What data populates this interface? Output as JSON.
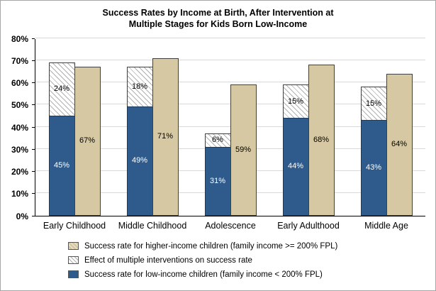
{
  "chart_data": {
    "type": "bar",
    "title": "Success Rates by Income at Birth, After Intervention at\nMultiple Stages for Kids Born Low-Income",
    "categories": [
      "Early Childhood",
      "Middle Childhood",
      "Adolescence",
      "Early Adulthood",
      "Middle Age"
    ],
    "series": [
      {
        "name": "Success rate for low-income children (family income < 200% FPL)",
        "values": [
          45,
          49,
          31,
          44,
          43
        ]
      },
      {
        "name": "Effect of multiple interventions on success rate",
        "values": [
          24,
          18,
          6,
          15,
          15
        ]
      },
      {
        "name": "Success rate for higher-income children (family income >= 200% FPL)",
        "values": [
          67,
          71,
          59,
          68,
          64
        ]
      }
    ],
    "ylim": [
      0,
      80
    ],
    "yticks": [
      "0%",
      "10%",
      "20%",
      "30%",
      "40%",
      "50%",
      "60%",
      "70%",
      "80%"
    ],
    "grid": true,
    "legend_position": "bottom",
    "colors": {
      "low_income_bar": "#2E5B8B",
      "intervention_hatch_bg": "#FFFFFF",
      "higher_income_bar": "#D6C8A2",
      "gridline": "#D9D9D9",
      "bar_border": "#404040"
    }
  }
}
